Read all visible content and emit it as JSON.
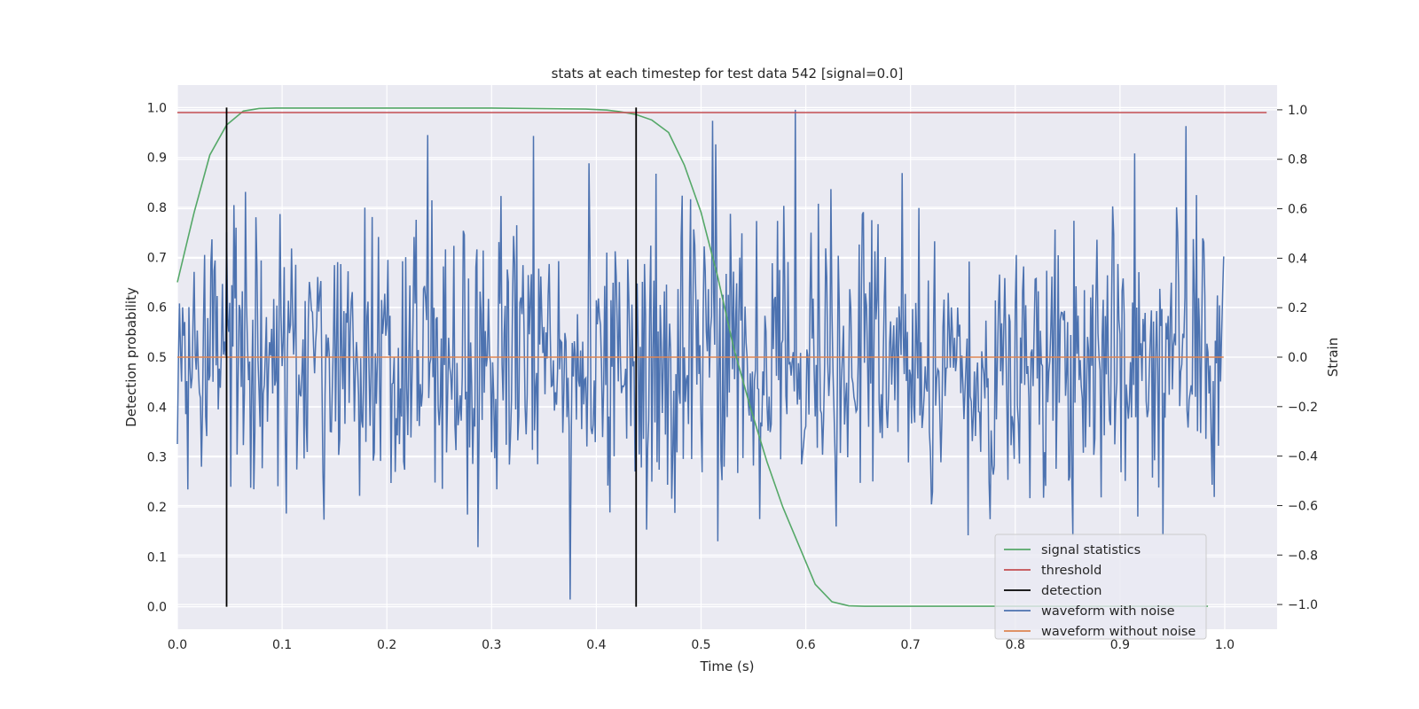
{
  "chart_data": {
    "type": "line",
    "title": "stats at each timestep for test data 542 [signal=0.0]",
    "xlabel": "Time (s)",
    "ylabel_left": "Detection probability",
    "ylabel_right": "Strain",
    "xlim": [
      0.0,
      1.05
    ],
    "ylim_left": [
      -0.045,
      1.045
    ],
    "ylim_right": [
      -1.1,
      1.1
    ],
    "x_ticks": [
      "0.0",
      "0.1",
      "0.2",
      "0.3",
      "0.4",
      "0.5",
      "0.6",
      "0.7",
      "0.8",
      "0.9",
      "1.0"
    ],
    "y_left_ticks": [
      "0.0",
      "0.1",
      "0.2",
      "0.3",
      "0.4",
      "0.5",
      "0.6",
      "0.7",
      "0.8",
      "0.9",
      "1.0"
    ],
    "y_right_ticks": [
      "−1.0",
      "−0.8",
      "−0.6",
      "−0.4",
      "−0.2",
      "0.0",
      "0.2",
      "0.4",
      "0.6",
      "0.8",
      "1.0"
    ],
    "grid": true,
    "legend_position": "lower-right",
    "colors": {
      "background": "#eaeaf2",
      "grid": "#ffffff",
      "signal_statistics": "#55a868",
      "threshold": "#c44e52",
      "detection": "#000000",
      "waveform_with_noise": "#4c72b0",
      "waveform_without_noise": "#dd8452"
    },
    "series": [
      {
        "name": "signal statistics",
        "axis": "left",
        "x": [
          0.0,
          0.016,
          0.031,
          0.047,
          0.063,
          0.078,
          0.094,
          0.2,
          0.3,
          0.39,
          0.41,
          0.422,
          0.438,
          0.453,
          0.469,
          0.484,
          0.5,
          0.516,
          0.531,
          0.547,
          0.563,
          0.578,
          0.594,
          0.609,
          0.625,
          0.641,
          0.656,
          0.7,
          0.8,
          0.9,
          0.984
        ],
        "y": [
          0.65,
          0.79,
          0.905,
          0.965,
          0.993,
          0.998,
          0.999,
          0.999,
          0.999,
          0.997,
          0.995,
          0.992,
          0.986,
          0.975,
          0.95,
          0.885,
          0.79,
          0.66,
          0.52,
          0.4,
          0.29,
          0.2,
          0.12,
          0.045,
          0.01,
          0.002,
          0.001,
          0.001,
          0.001,
          0.001,
          0.001
        ]
      },
      {
        "name": "threshold",
        "axis": "left",
        "x": [
          0.0,
          1.04
        ],
        "y": [
          0.99,
          0.99
        ]
      },
      {
        "name": "detection",
        "axis": "left",
        "x": [
          0.047,
          0.438
        ],
        "y_range": [
          0.0,
          1.0
        ]
      },
      {
        "name": "waveform with noise",
        "axis": "right",
        "n_points": 1000,
        "x_range": [
          0.0,
          0.999
        ],
        "y_min": -1.0,
        "y_max": 1.0,
        "std": 0.32
      },
      {
        "name": "waveform without noise",
        "axis": "right",
        "x": [
          0.0,
          0.999
        ],
        "y": [
          0.0,
          0.0
        ]
      }
    ],
    "legend": [
      "signal statistics",
      "threshold",
      "detection",
      "waveform with noise",
      "waveform without noise"
    ]
  }
}
